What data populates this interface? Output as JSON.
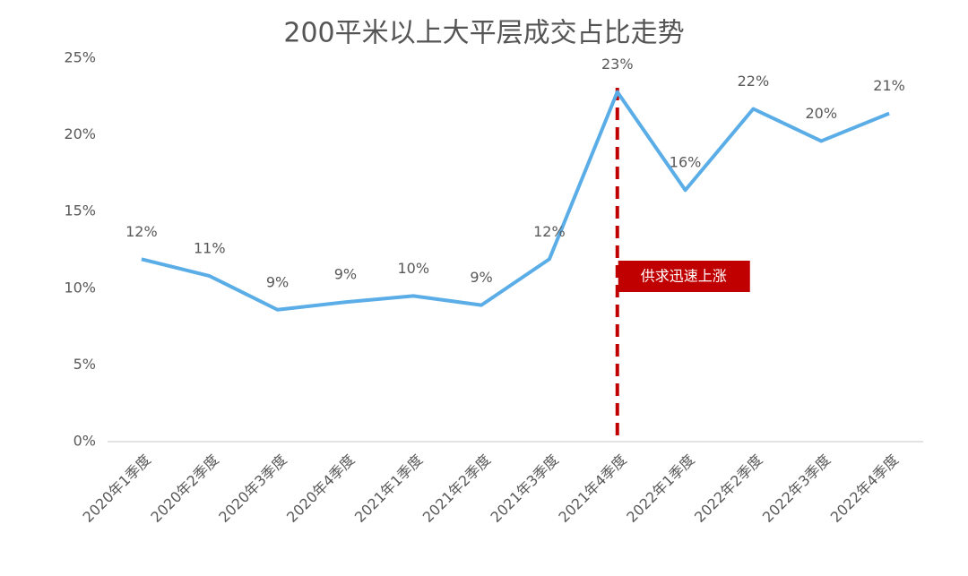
{
  "chart_data": {
    "type": "line",
    "title": "200平米以上大平层成交占比走势",
    "categories": [
      "2020年1季度",
      "2020年2季度",
      "2020年3季度",
      "2020年4季度",
      "2021年1季度",
      "2021年2季度",
      "2021年3季度",
      "2021年4季度",
      "2022年1季度",
      "2022年2季度",
      "2022年3季度",
      "2022年4季度"
    ],
    "series": [
      {
        "name": "200平米以上大平层成交占比",
        "color": "#5aade6",
        "values": [
          11.9,
          10.8,
          8.6,
          9.1,
          9.5,
          8.9,
          11.9,
          22.8,
          16.4,
          21.7,
          19.6,
          21.4
        ],
        "value_labels": [
          "12%",
          "11%",
          "9%",
          "9%",
          "10%",
          "9%",
          "12%",
          "23%",
          "16%",
          "22%",
          "20%",
          "21%"
        ]
      }
    ],
    "ylim": [
      0,
      25
    ],
    "yticks": [
      {
        "value": 0,
        "label": "0%"
      },
      {
        "value": 5,
        "label": "5%"
      },
      {
        "value": 10,
        "label": "10%"
      },
      {
        "value": 15,
        "label": "15%"
      },
      {
        "value": 20,
        "label": "20%"
      },
      {
        "value": 25,
        "label": "25%"
      }
    ],
    "grid": false,
    "annotation": {
      "text": "供求迅速上涨",
      "x": "2021年4季度",
      "color": "#c00000"
    }
  }
}
